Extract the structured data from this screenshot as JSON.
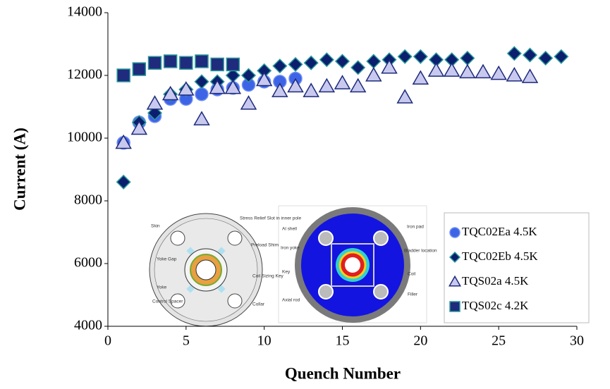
{
  "chart_data": {
    "type": "scatter",
    "xlabel": "Quench Number",
    "ylabel": "Current  (A)",
    "xlim": [
      0,
      30
    ],
    "xticks": [
      0,
      5,
      10,
      15,
      20,
      25,
      30
    ],
    "ylim": [
      4000,
      14000
    ],
    "yticks": [
      4000,
      6000,
      8000,
      10000,
      12000,
      14000
    ],
    "legend": "lower right",
    "series": [
      {
        "name": "TQC02Ea 4.5K",
        "marker": "circle",
        "color": "#3d63e6",
        "edge": "#6f8ff0",
        "x": [
          1,
          2,
          3,
          4,
          5,
          6,
          7,
          8,
          9,
          10,
          11,
          12
        ],
        "values": [
          9850,
          10500,
          10700,
          11250,
          11250,
          11400,
          11550,
          11600,
          11700,
          11800,
          11800,
          11900
        ]
      },
      {
        "name": "TQC02Eb 4.5K",
        "marker": "diamond",
        "color": "#0b1f6e",
        "edge": "#2a9a9a",
        "x": [
          1,
          2,
          3,
          4,
          5,
          6,
          7,
          8,
          9,
          10,
          11,
          12,
          13,
          14,
          15,
          16,
          17,
          18,
          19,
          20,
          21,
          22,
          23,
          26,
          27,
          28,
          29
        ],
        "values": [
          8600,
          10500,
          10800,
          11400,
          11550,
          11800,
          11800,
          12000,
          12000,
          12150,
          12300,
          12350,
          12400,
          12500,
          12450,
          12250,
          12450,
          12500,
          12600,
          12600,
          12500,
          12500,
          12550,
          12700,
          12650,
          12550,
          12600
        ]
      },
      {
        "name": "TQS02a 4.5K",
        "marker": "triangle",
        "color": "#c9c9ef",
        "edge": "#1c2a7a",
        "x": [
          1,
          2,
          3,
          4,
          5,
          6,
          7,
          8,
          9,
          10,
          11,
          12,
          13,
          14,
          15,
          16,
          17,
          18,
          19,
          20,
          21,
          22,
          23,
          24,
          25,
          26,
          27
        ],
        "values": [
          9850,
          10300,
          11100,
          11400,
          11550,
          10600,
          11600,
          11600,
          11100,
          11850,
          11500,
          11650,
          11500,
          11650,
          11750,
          11650,
          12000,
          12250,
          11300,
          11900,
          12150,
          12150,
          12100,
          12100,
          12050,
          12000,
          11950
        ]
      },
      {
        "name": "TQS02c 4.2K",
        "marker": "square",
        "color": "#1f2b7c",
        "edge": "#2a9a9a",
        "x": [
          1,
          2,
          3,
          4,
          5,
          6,
          7,
          8
        ],
        "values": [
          12000,
          12200,
          12400,
          12450,
          12400,
          12450,
          12350,
          12350
        ]
      }
    ],
    "annotations": [
      "Skin",
      "Yoke Gap",
      "Yoke",
      "Control Spacer",
      "Stress Relief Slot in inner pole",
      "Preload Shim",
      "Coil Sizing Key",
      "Collar",
      "Al shell",
      "Iron yoke",
      "Key",
      "Axial rod",
      "Iron pad",
      "Bladder location",
      "Coil",
      "Filler"
    ]
  }
}
